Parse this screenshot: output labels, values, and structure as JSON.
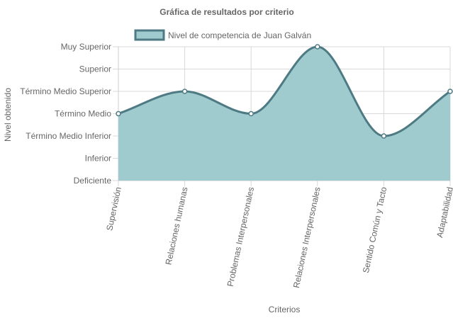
{
  "chart_data": {
    "type": "area",
    "title": "Gráfica de resultados por criterio",
    "xlabel": "Criterios",
    "ylabel": "Nivel obtenido",
    "categories": [
      "Supervisión",
      "Relaciones humanas",
      "Problemas Interpersonales",
      "Relaciones Interpersonales",
      "Sentido Común y Tacto",
      "Adaptabilidad"
    ],
    "y_levels": [
      "Deficiente",
      "Inferior",
      "Término Medio Inferior",
      "Término Medio",
      "Término Medio Superior",
      "Superior",
      "Muy Superior"
    ],
    "ylim": [
      0,
      6
    ],
    "series": [
      {
        "name": "Nivel de competencia de Juan Galván",
        "values": [
          3,
          4,
          3,
          6,
          2,
          4
        ],
        "value_labels": [
          "Término Medio",
          "Término Medio Superior",
          "Término Medio",
          "Muy Superior",
          "Término Medio Inferior",
          "Término Medio Superior"
        ],
        "fill_color": "#9fcbce",
        "line_color": "#4e7a84"
      }
    ],
    "grid": true,
    "legend_position": "top",
    "smooth": true
  }
}
